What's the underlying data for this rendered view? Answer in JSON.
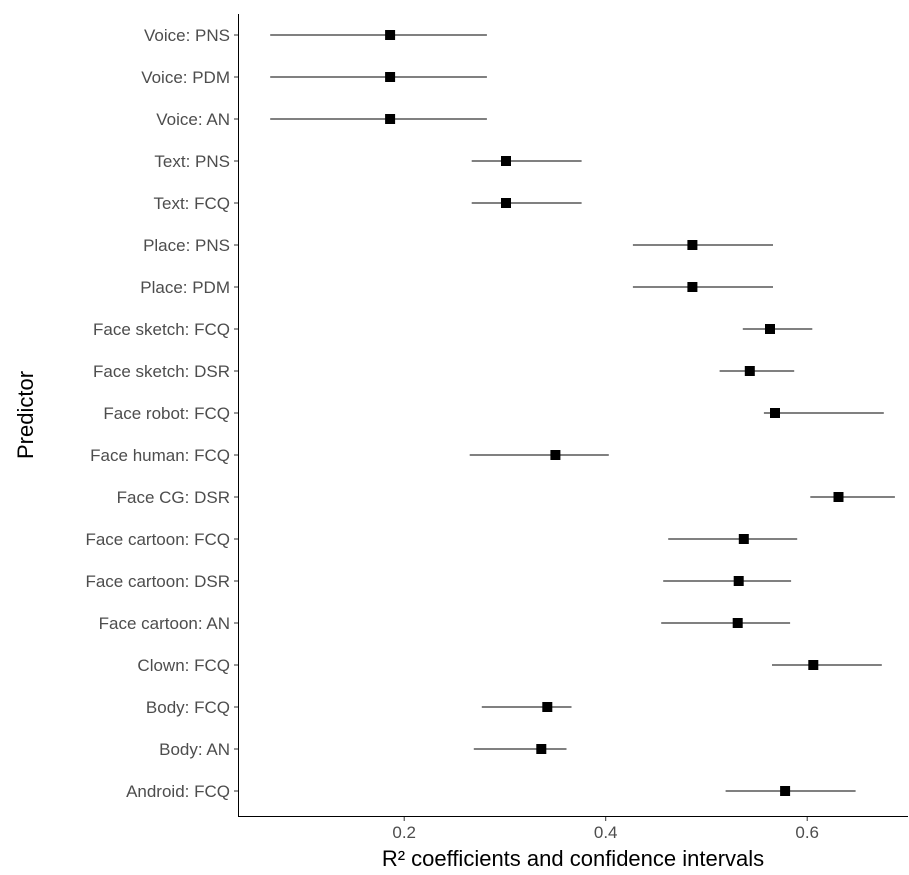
{
  "chart_data": {
    "type": "scatter",
    "xlabel": "R² coefficients and confidence intervals",
    "ylabel": "Predictor",
    "xlim": [
      0.035,
      0.7
    ],
    "xticks": [
      0.2,
      0.4,
      0.6
    ],
    "xtick_labels": [
      "0.2",
      "0.4",
      "0.6"
    ],
    "grid": false,
    "categories": [
      "Voice: PNS",
      "Voice: PDM",
      "Voice: AN",
      "Text: PNS",
      "Text: FCQ",
      "Place: PNS",
      "Place: PDM",
      "Face sketch: FCQ",
      "Face sketch: DSR",
      "Face robot: FCQ",
      "Face human: FCQ",
      "Face CG: DSR",
      "Face cartoon: FCQ",
      "Face cartoon: DSR",
      "Face cartoon: AN",
      "Clown: FCQ",
      "Body: FCQ",
      "Body: AN",
      "Android: FCQ"
    ],
    "estimates": [
      0.186,
      0.186,
      0.186,
      0.301,
      0.301,
      0.486,
      0.486,
      0.563,
      0.543,
      0.568,
      0.35,
      0.631,
      0.537,
      0.532,
      0.531,
      0.606,
      0.342,
      0.336,
      0.578
    ],
    "ci_low": [
      0.067,
      0.067,
      0.067,
      0.267,
      0.267,
      0.427,
      0.427,
      0.536,
      0.513,
      0.557,
      0.265,
      0.603,
      0.462,
      0.457,
      0.455,
      0.565,
      0.277,
      0.269,
      0.519
    ],
    "ci_high": [
      0.282,
      0.282,
      0.282,
      0.376,
      0.376,
      0.566,
      0.566,
      0.605,
      0.587,
      0.676,
      0.403,
      0.687,
      0.59,
      0.584,
      0.583,
      0.674,
      0.366,
      0.361,
      0.648
    ]
  }
}
